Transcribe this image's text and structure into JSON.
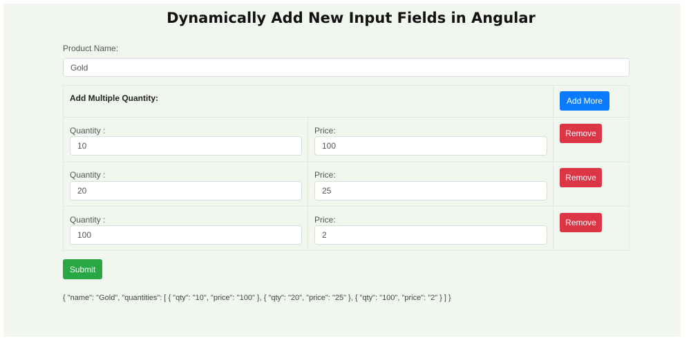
{
  "page": {
    "title": "Dynamically Add New Input Fields in Angular"
  },
  "form": {
    "product_name_label": "Product Name:",
    "product_name_value": "Gold",
    "section_title": "Add Multiple Quantity:",
    "add_more_label": "Add More",
    "quantity_label": "Quantity :",
    "price_label": "Price:",
    "remove_label": "Remove",
    "submit_label": "Submit",
    "rows": [
      {
        "qty": "10",
        "price": "100"
      },
      {
        "qty": "20",
        "price": "25"
      },
      {
        "qty": "100",
        "price": "2"
      }
    ]
  },
  "output": {
    "json_text": "{ \"name\": \"Gold\", \"quantities\": [ { \"qty\": \"10\", \"price\": \"100\" }, { \"qty\": \"20\", \"price\": \"25\" }, { \"qty\": \"100\", \"price\": \"2\" } ] }"
  },
  "colors": {
    "background": "#f1f7ef",
    "add_more": "#0a7bff",
    "remove": "#dc3545",
    "submit": "#28a745"
  }
}
